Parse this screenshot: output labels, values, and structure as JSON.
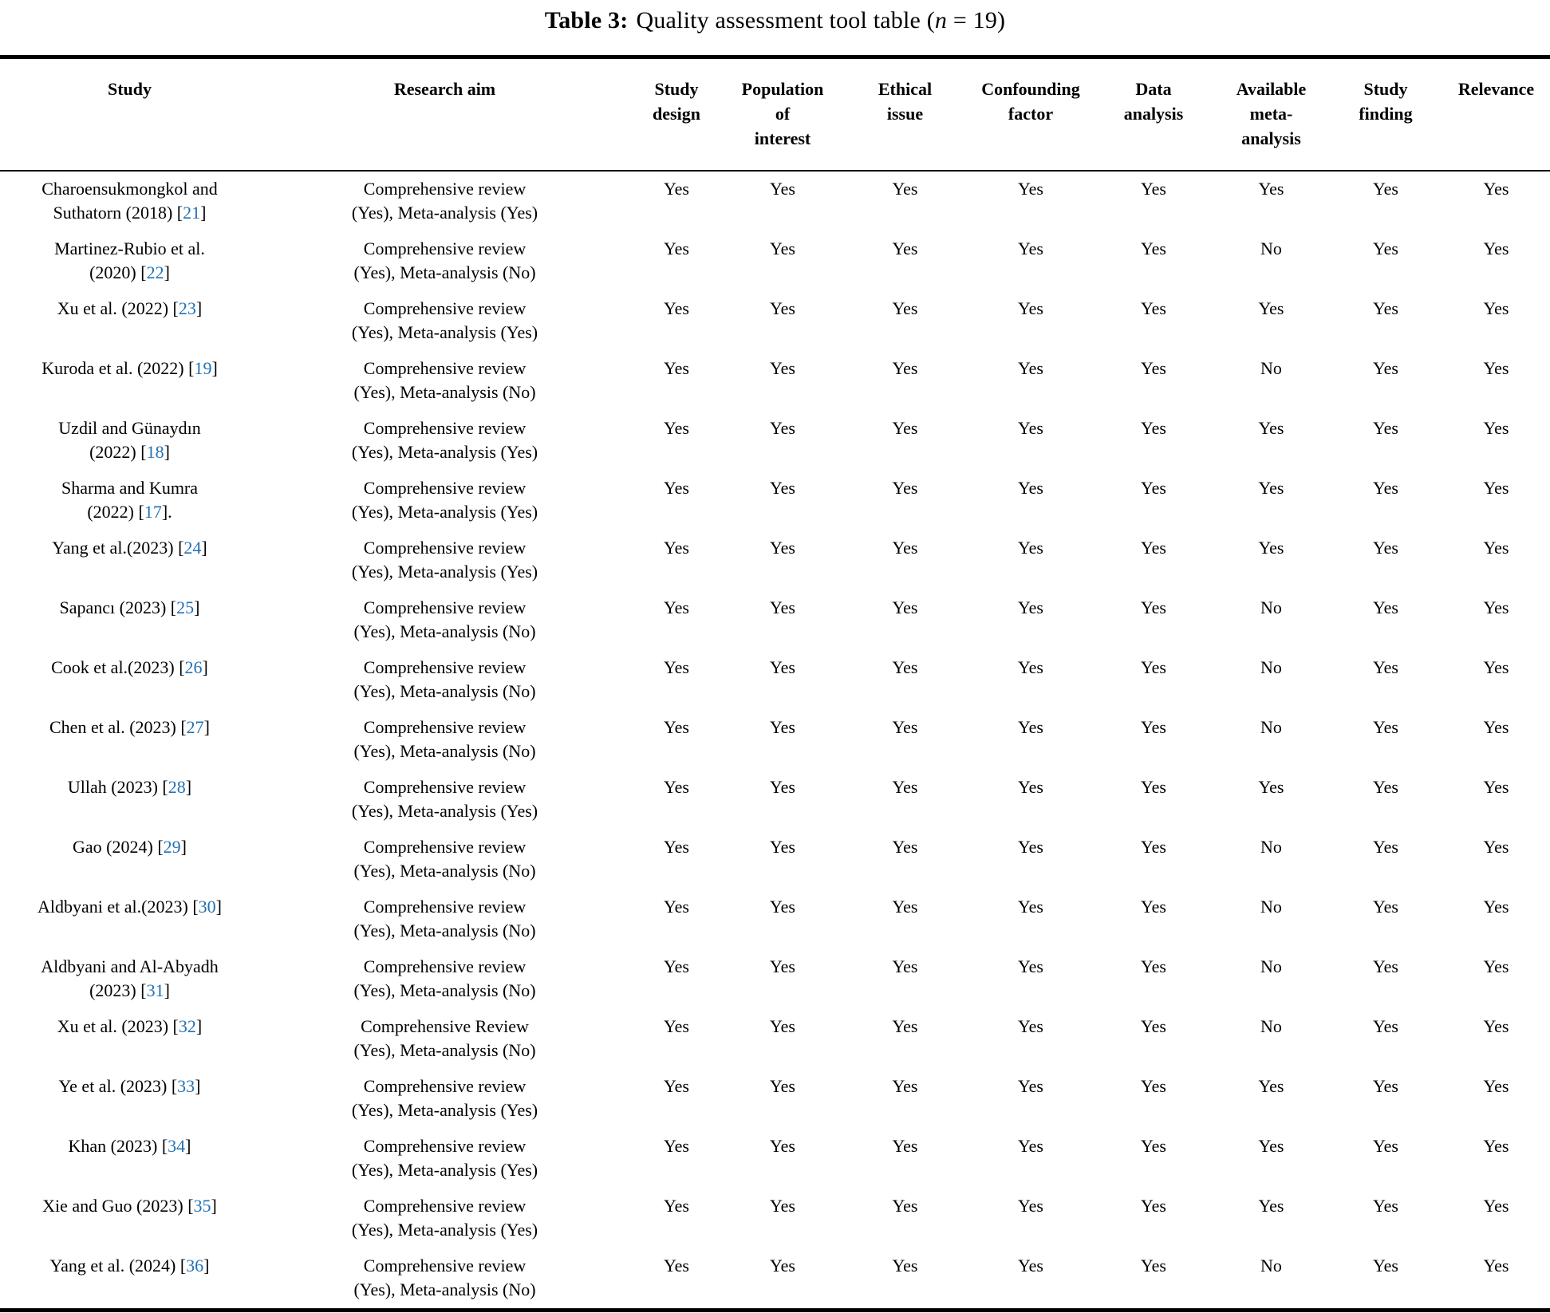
{
  "page": {
    "background": "#ffffff",
    "link_color": "#2171b5"
  },
  "title": {
    "label": "Table 3:",
    "text": "Quality assessment tool table (",
    "italic_var": "n",
    "suffix": " = 19)"
  },
  "table": {
    "headers": [
      {
        "id": "study",
        "lines": [
          "Study"
        ]
      },
      {
        "id": "research-aim",
        "lines": [
          "Research aim"
        ]
      },
      {
        "id": "study-design",
        "lines": [
          "Study",
          "design"
        ]
      },
      {
        "id": "population-of-interest",
        "lines": [
          "Population",
          "of",
          "interest"
        ]
      },
      {
        "id": "ethical-issue",
        "lines": [
          "Ethical",
          "issue"
        ]
      },
      {
        "id": "confounding-factor",
        "lines": [
          "Confounding",
          "factor"
        ]
      },
      {
        "id": "data-analysis",
        "lines": [
          "Data",
          "analysis"
        ]
      },
      {
        "id": "available-meta-analysis",
        "lines": [
          "Available",
          "meta-",
          "analysis"
        ]
      },
      {
        "id": "study-finding",
        "lines": [
          "Study",
          "finding"
        ]
      },
      {
        "id": "relevance",
        "lines": [
          "Relevance"
        ]
      }
    ],
    "rows": [
      {
        "study_line1": "Charoensukmongkol and",
        "study_pre": "Suthatorn (2018) [",
        "ref": "21",
        "study_post": "]",
        "aim_line1": "Comprehensive review",
        "aim_line2": "(Yes), Meta-analysis (Yes)",
        "values": [
          "Yes",
          "Yes",
          "Yes",
          "Yes",
          "Yes",
          "Yes",
          "Yes",
          "Yes"
        ]
      },
      {
        "study_line1": "Martinez-Rubio et al.",
        "study_pre": "(2020) [",
        "ref": "22",
        "study_post": "]",
        "aim_line1": "Comprehensive review",
        "aim_line2": "(Yes), Meta-analysis (No)",
        "values": [
          "Yes",
          "Yes",
          "Yes",
          "Yes",
          "Yes",
          "No",
          "Yes",
          "Yes"
        ]
      },
      {
        "study_pre": "Xu et al. (2022) [",
        "ref": "23",
        "study_post": "]",
        "aim_line1": "Comprehensive review",
        "aim_line2": "(Yes), Meta-analysis (Yes)",
        "values": [
          "Yes",
          "Yes",
          "Yes",
          "Yes",
          "Yes",
          "Yes",
          "Yes",
          "Yes"
        ]
      },
      {
        "study_pre": "Kuroda et al. (2022) [",
        "ref": "19",
        "study_post": "]",
        "aim_line1": "Comprehensive review",
        "aim_line2": "(Yes), Meta-analysis (No)",
        "values": [
          "Yes",
          "Yes",
          "Yes",
          "Yes",
          "Yes",
          "No",
          "Yes",
          "Yes"
        ]
      },
      {
        "study_line1": "Uzdil and Günaydın",
        "study_pre": "(2022) [",
        "ref": "18",
        "study_post": "]",
        "aim_line1": "Comprehensive review",
        "aim_line2": "(Yes), Meta-analysis (Yes)",
        "values": [
          "Yes",
          "Yes",
          "Yes",
          "Yes",
          "Yes",
          "Yes",
          "Yes",
          "Yes"
        ]
      },
      {
        "study_line1": "Sharma and Kumra",
        "study_pre": "(2022) [",
        "ref": "17",
        "study_post": "].",
        "aim_line1": "Comprehensive review",
        "aim_line2": "(Yes), Meta-analysis (Yes)",
        "values": [
          "Yes",
          "Yes",
          "Yes",
          "Yes",
          "Yes",
          "Yes",
          "Yes",
          "Yes"
        ]
      },
      {
        "study_pre": "Yang et al.(2023) [",
        "ref": "24",
        "study_post": "]",
        "aim_line1": "Comprehensive review",
        "aim_line2": "(Yes), Meta-analysis (Yes)",
        "values": [
          "Yes",
          "Yes",
          "Yes",
          "Yes",
          "Yes",
          "Yes",
          "Yes",
          "Yes"
        ]
      },
      {
        "study_pre": "Sapancı (2023) [",
        "ref": "25",
        "study_post": "]",
        "aim_line1": "Comprehensive review",
        "aim_line2": "(Yes), Meta-analysis (No)",
        "values": [
          "Yes",
          "Yes",
          "Yes",
          "Yes",
          "Yes",
          "No",
          "Yes",
          "Yes"
        ]
      },
      {
        "study_pre": "Cook et al.(2023) [",
        "ref": "26",
        "study_post": "]",
        "aim_line1": "Comprehensive review",
        "aim_line2": "(Yes), Meta-analysis (No)",
        "values": [
          "Yes",
          "Yes",
          "Yes",
          "Yes",
          "Yes",
          "No",
          "Yes",
          "Yes"
        ]
      },
      {
        "study_pre": "Chen et al. (2023) [",
        "ref": "27",
        "study_post": "]",
        "aim_line1": "Comprehensive review",
        "aim_line2": "(Yes), Meta-analysis (No)",
        "values": [
          "Yes",
          "Yes",
          "Yes",
          "Yes",
          "Yes",
          "No",
          "Yes",
          "Yes"
        ]
      },
      {
        "study_pre": "Ullah (2023) [",
        "ref": "28",
        "study_post": "]",
        "aim_line1": "Comprehensive review",
        "aim_line2": "(Yes), Meta-analysis (Yes)",
        "values": [
          "Yes",
          "Yes",
          "Yes",
          "Yes",
          "Yes",
          "Yes",
          "Yes",
          "Yes"
        ]
      },
      {
        "study_pre": "Gao (2024) [",
        "ref": "29",
        "study_post": "]",
        "aim_line1": "Comprehensive review",
        "aim_line2": "(Yes), Meta-analysis (No)",
        "values": [
          "Yes",
          "Yes",
          "Yes",
          "Yes",
          "Yes",
          "No",
          "Yes",
          "Yes"
        ]
      },
      {
        "study_pre": "Aldbyani et al.(2023) [",
        "ref": "30",
        "study_post": "]",
        "aim_line1": "Comprehensive review",
        "aim_line2": "(Yes), Meta-analysis (No)",
        "values": [
          "Yes",
          "Yes",
          "Yes",
          "Yes",
          "Yes",
          "No",
          "Yes",
          "Yes"
        ]
      },
      {
        "study_line1": "Aldbyani and Al-Abyadh",
        "study_pre": "(2023) [",
        "ref": "31",
        "study_post": "]",
        "aim_line1": "Comprehensive review",
        "aim_line2": "(Yes), Meta-analysis (No)",
        "values": [
          "Yes",
          "Yes",
          "Yes",
          "Yes",
          "Yes",
          "No",
          "Yes",
          "Yes"
        ]
      },
      {
        "study_pre": "Xu et al. (2023) [",
        "ref": "32",
        "study_post": "]",
        "aim_line1": "Comprehensive Review",
        "aim_line2": "(Yes), Meta-analysis (No)",
        "values": [
          "Yes",
          "Yes",
          "Yes",
          "Yes",
          "Yes",
          "No",
          "Yes",
          "Yes"
        ]
      },
      {
        "study_pre": "Ye et al. (2023) [",
        "ref": "33",
        "study_post": "]",
        "aim_line1": "Comprehensive review",
        "aim_line2": "(Yes), Meta-analysis (Yes)",
        "values": [
          "Yes",
          "Yes",
          "Yes",
          "Yes",
          "Yes",
          "Yes",
          "Yes",
          "Yes"
        ]
      },
      {
        "study_pre": "Khan (2023) [",
        "ref": "34",
        "study_post": "]",
        "aim_line1": "Comprehensive review",
        "aim_line2": "(Yes), Meta-analysis (Yes)",
        "values": [
          "Yes",
          "Yes",
          "Yes",
          "Yes",
          "Yes",
          "Yes",
          "Yes",
          "Yes"
        ]
      },
      {
        "study_pre": "Xie and Guo (2023) [",
        "ref": "35",
        "study_post": "]",
        "aim_line1": "Comprehensive review",
        "aim_line2": "(Yes), Meta-analysis (Yes)",
        "values": [
          "Yes",
          "Yes",
          "Yes",
          "Yes",
          "Yes",
          "Yes",
          "Yes",
          "Yes"
        ]
      },
      {
        "study_pre": "Yang et al. (2024) [",
        "ref": "36",
        "study_post": "]",
        "aim_line1": "Comprehensive review",
        "aim_line2": "(Yes), Meta-analysis (No)",
        "values": [
          "Yes",
          "Yes",
          "Yes",
          "Yes",
          "Yes",
          "No",
          "Yes",
          "Yes"
        ]
      }
    ]
  }
}
